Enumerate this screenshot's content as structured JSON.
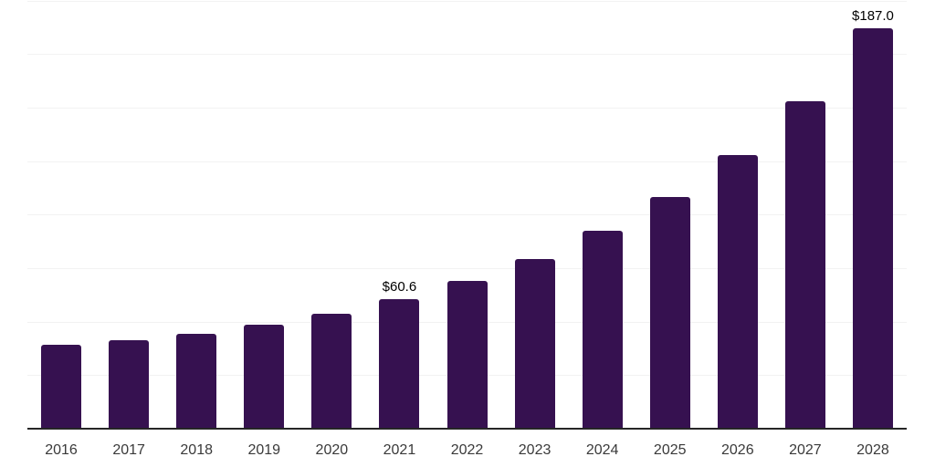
{
  "chart_data": {
    "type": "bar",
    "categories": [
      "2016",
      "2017",
      "2018",
      "2019",
      "2020",
      "2021",
      "2022",
      "2023",
      "2024",
      "2025",
      "2026",
      "2027",
      "2028"
    ],
    "values": [
      39.4,
      41.3,
      44.4,
      48.4,
      53.5,
      60.6,
      69.1,
      79.2,
      92.6,
      108.2,
      127.8,
      152.9,
      187.0
    ],
    "annotations": [
      {
        "category": "2021",
        "text": "$60.6"
      },
      {
        "category": "2028",
        "text": "$187.0"
      }
    ],
    "title": "",
    "xlabel": "",
    "ylabel": "",
    "ylim": [
      0,
      200
    ],
    "gridline_step": 25,
    "grid": "horizontal",
    "legend": "none",
    "y_tick_labels_visible": false,
    "bar_color": "#361150"
  },
  "colors": {
    "bar": "#361150",
    "gridline": "#f2f2f2",
    "axis": "#262626",
    "tick_label": "#3a3a3a",
    "annotation": "#000000",
    "background": "#ffffff"
  }
}
